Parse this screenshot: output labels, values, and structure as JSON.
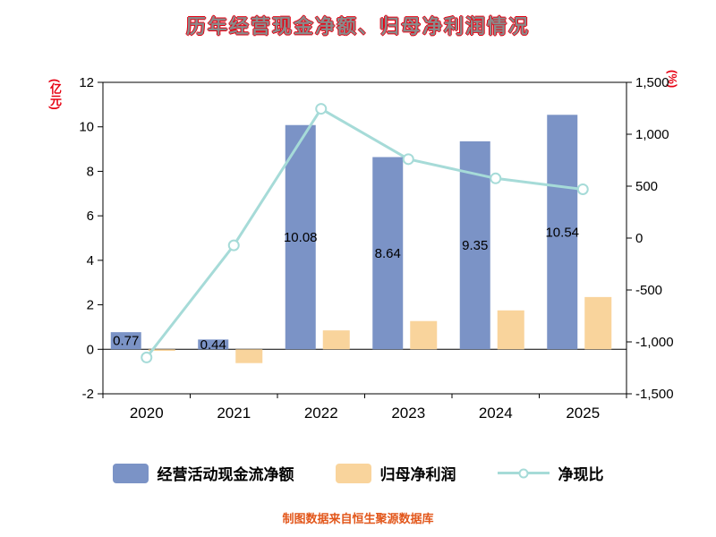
{
  "page": {
    "title": "历年经营现金净额、归母净利润情况",
    "footer_note": "制图数据来自恒生聚源数据库"
  },
  "colors": {
    "bar_cashflow": "#7b93c6",
    "bar_netprofit": "#f9d49c",
    "line_ratio": "#a6dbd8",
    "axis_unit_red": "#e60012",
    "footer_orange": "#e2571b",
    "title_gray": "#8a8a8a",
    "title_outline_red": "#e60012",
    "axis_text": "#000000"
  },
  "chart_data": {
    "type": "bar",
    "subtype": "grouped bars with overlay line on secondary axis",
    "title": "历年经营现金净额、归母净利润情况",
    "categories": [
      "2020",
      "2021",
      "2022",
      "2023",
      "2024",
      "2025"
    ],
    "series": [
      {
        "name": "经营活动现金流净额",
        "type": "bar",
        "axis": "left",
        "color": "#7b93c6",
        "values": [
          0.77,
          0.44,
          10.08,
          8.64,
          9.35,
          10.54
        ],
        "data_labels": [
          "0.77",
          "0.44",
          "10.08",
          "8.64",
          "9.35",
          "10.54"
        ]
      },
      {
        "name": "归母净利润",
        "type": "bar",
        "axis": "left",
        "color": "#f9d49c",
        "values": [
          -0.07,
          -0.62,
          0.85,
          1.27,
          1.75,
          2.35
        ]
      },
      {
        "name": "净现比",
        "type": "line",
        "axis": "right",
        "color": "#a6dbd8",
        "marker": "open-circle",
        "values": [
          -1150,
          -70,
          1245,
          760,
          575,
          470
        ]
      }
    ],
    "left_axis": {
      "unit": "(亿元)",
      "min": -2,
      "max": 12,
      "ticks": [
        -2,
        0,
        2,
        4,
        6,
        8,
        10,
        12
      ]
    },
    "right_axis": {
      "unit": "(%)",
      "min": -1500,
      "max": 1500,
      "ticks": [
        -1500,
        -1000,
        -500,
        0,
        500,
        1000,
        1500
      ],
      "tick_labels": [
        "-1,500",
        "-1,000",
        "-500",
        "0",
        "500",
        "1,000",
        "1,500"
      ]
    },
    "grid": false,
    "zero_line": true,
    "legend_position": "bottom"
  }
}
